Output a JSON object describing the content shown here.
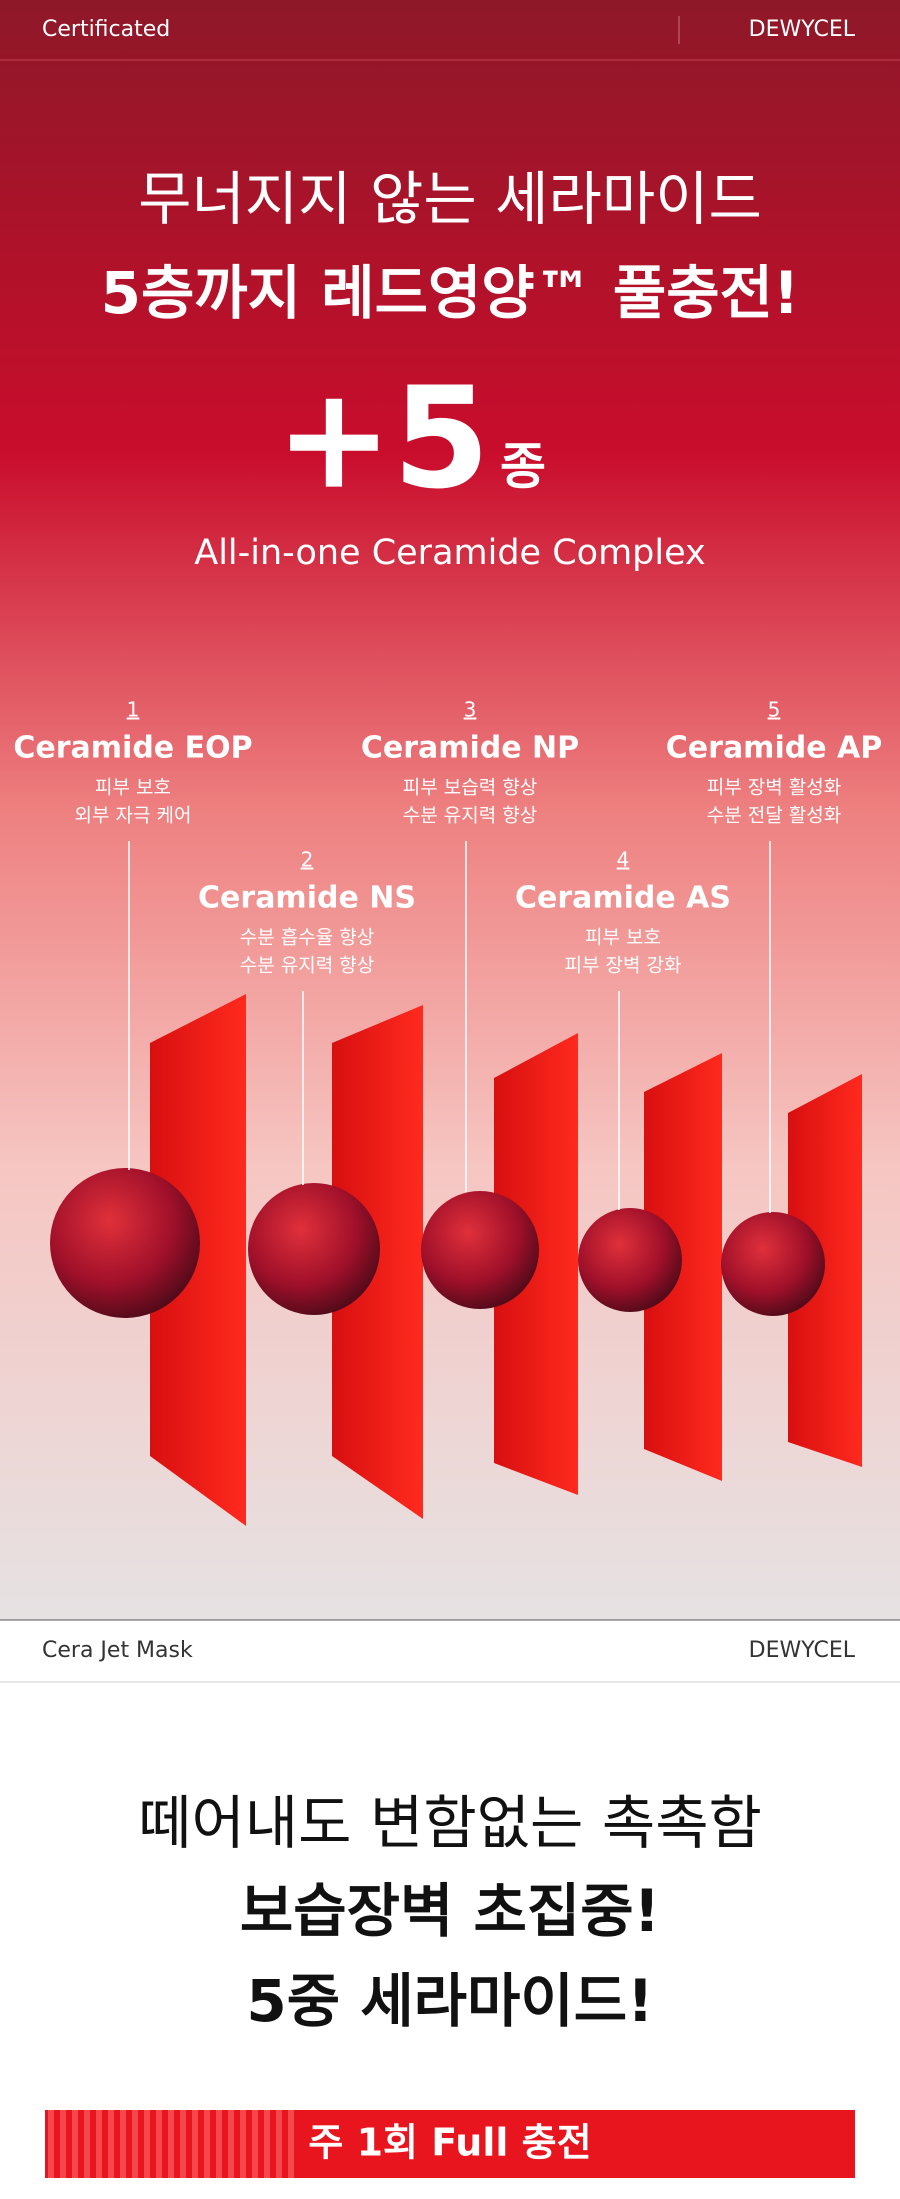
{
  "header": {
    "left": "Certificated",
    "right": "DEWYCEL"
  },
  "hero": {
    "title_lines": [
      "무너지지 않는 세라마이드",
      "5층까지 레드영양™ 풀충전!"
    ],
    "big_number": "+5",
    "big_suffix": "종",
    "subtitle": "All-in-one Ceramide Complex"
  },
  "ceramides": [
    {
      "number": "1",
      "name": "Ceramide EOP",
      "desc": [
        "피부 보호",
        "외부 자극 케어"
      ]
    },
    {
      "number": "2",
      "name": "Ceramide NS",
      "desc": [
        "수분 흡수율 향상",
        "수분 유지력 향상"
      ]
    },
    {
      "number": "3",
      "name": "Ceramide NP",
      "desc": [
        "피부 보습력 향상",
        "수분 유지력 향상"
      ]
    },
    {
      "number": "4",
      "name": "Ceramide AS",
      "desc": [
        "피부 보호",
        "피부 장벽 강화"
      ]
    },
    {
      "number": "5",
      "name": "Ceramide AP",
      "desc": [
        "피부 장벽 활성화",
        "수분 전달 활성화"
      ]
    }
  ],
  "section2": {
    "header_left": "Cera Jet Mask",
    "header_right": "DEWYCEL",
    "headline_lines": [
      "떼어내도 변함없는 촉촉함",
      "보습장벽 초집중!",
      "5중 세라마이드!"
    ],
    "banner": "주 1회 Full 충전"
  }
}
